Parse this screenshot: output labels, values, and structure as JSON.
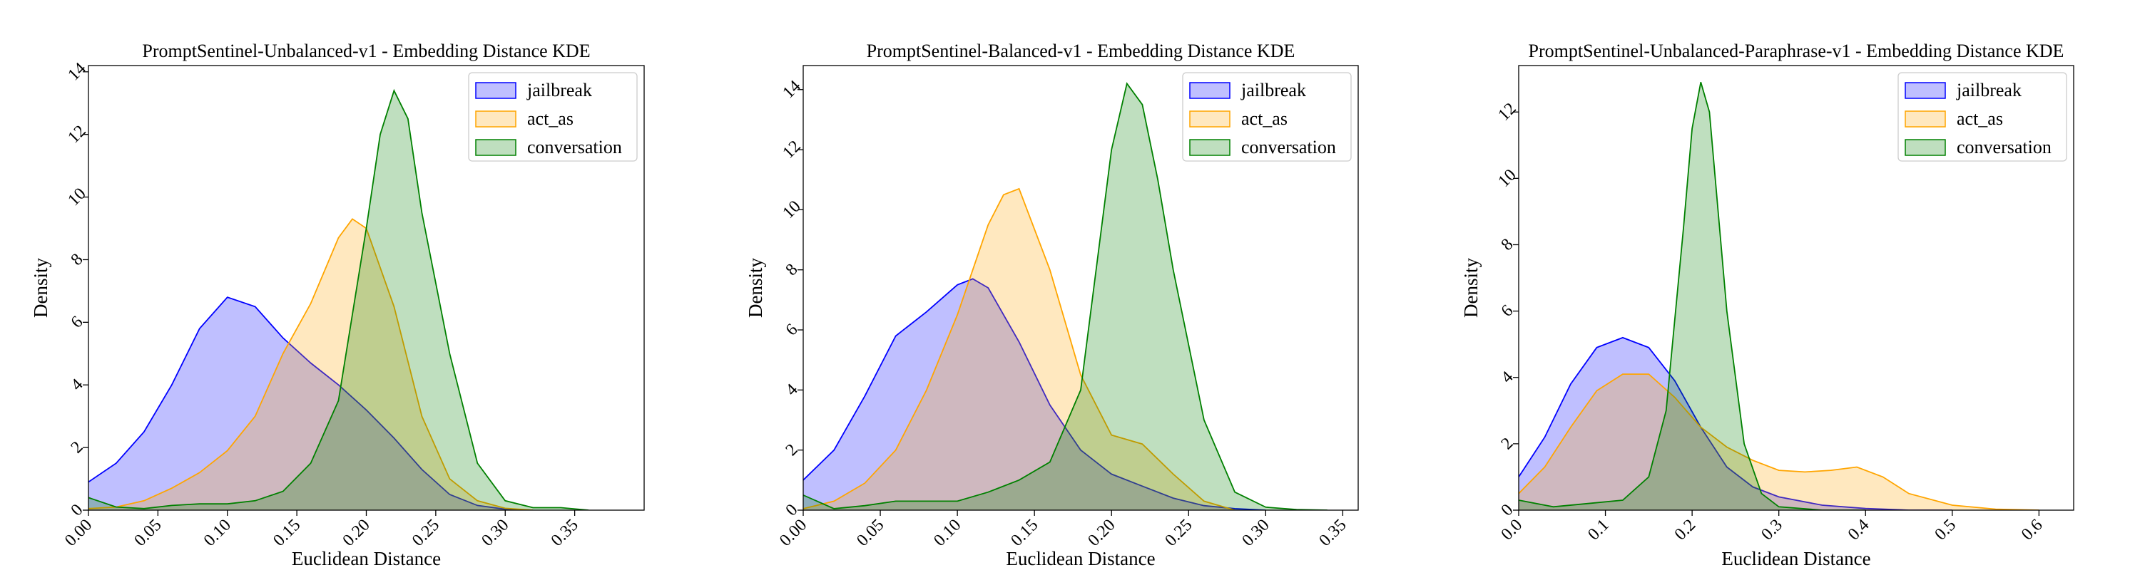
{
  "figure": {
    "background": "#ffffff"
  },
  "chart_data": [
    {
      "type": "area",
      "title": "PromptSentinel-Unbalanced-v1 - Embedding Distance KDE",
      "xlabel": "Euclidean Distance",
      "ylabel": "Density",
      "xlim": [
        0.0,
        0.4
      ],
      "ylim": [
        0,
        14.2
      ],
      "xticks": [
        0.0,
        0.05,
        0.1,
        0.15,
        0.2,
        0.25,
        0.3,
        0.35
      ],
      "xtick_labels": [
        "0.00",
        "0.05",
        "0.10",
        "0.15",
        "0.20",
        "0.25",
        "0.30",
        "0.35"
      ],
      "yticks": [
        0,
        2,
        4,
        6,
        8,
        10,
        12,
        14
      ],
      "ytick_labels": [
        "0",
        "2",
        "4",
        "6",
        "8",
        "10",
        "12",
        "14"
      ],
      "grid": false,
      "legend_position": "top-right",
      "series": [
        {
          "name": "jailbreak",
          "color": "#0000ff",
          "fill": "rgba(0,0,255,0.25)",
          "x": [
            0.0,
            0.02,
            0.04,
            0.06,
            0.08,
            0.1,
            0.12,
            0.14,
            0.16,
            0.18,
            0.2,
            0.22,
            0.24,
            0.26,
            0.28,
            0.3,
            0.32
          ],
          "y": [
            0.9,
            1.5,
            2.5,
            4.0,
            5.8,
            6.8,
            6.5,
            5.5,
            4.7,
            4.0,
            3.2,
            2.3,
            1.3,
            0.5,
            0.15,
            0.03,
            0.0
          ]
        },
        {
          "name": "act_as",
          "color": "#ffa500",
          "fill": "rgba(255,165,0,0.25)",
          "x": [
            0.0,
            0.02,
            0.04,
            0.06,
            0.08,
            0.1,
            0.12,
            0.14,
            0.16,
            0.18,
            0.19,
            0.2,
            0.22,
            0.24,
            0.26,
            0.28,
            0.3,
            0.32
          ],
          "y": [
            0.05,
            0.1,
            0.3,
            0.7,
            1.2,
            1.9,
            3.0,
            5.0,
            6.6,
            8.7,
            9.3,
            9.0,
            6.5,
            3.0,
            1.0,
            0.3,
            0.06,
            0.0
          ]
        },
        {
          "name": "conversation",
          "color": "#008000",
          "fill": "rgba(0,128,0,0.25)",
          "x": [
            0.0,
            0.02,
            0.04,
            0.06,
            0.08,
            0.1,
            0.12,
            0.14,
            0.16,
            0.18,
            0.2,
            0.21,
            0.22,
            0.23,
            0.24,
            0.26,
            0.28,
            0.3,
            0.32,
            0.34,
            0.36
          ],
          "y": [
            0.4,
            0.1,
            0.05,
            0.15,
            0.2,
            0.2,
            0.3,
            0.6,
            1.5,
            3.5,
            9.0,
            12.0,
            13.4,
            12.5,
            9.5,
            5.0,
            1.5,
            0.3,
            0.08,
            0.08,
            0.0
          ]
        }
      ]
    },
    {
      "type": "area",
      "title": "PromptSentinel-Balanced-v1 - Embedding Distance KDE",
      "xlabel": "Euclidean Distance",
      "ylabel": "Density",
      "xlim": [
        0.0,
        0.36
      ],
      "ylim": [
        0,
        14.8
      ],
      "xticks": [
        0.0,
        0.05,
        0.1,
        0.15,
        0.2,
        0.25,
        0.3,
        0.35
      ],
      "xtick_labels": [
        "0.00",
        "0.05",
        "0.10",
        "0.15",
        "0.20",
        "0.25",
        "0.30",
        "0.35"
      ],
      "yticks": [
        0,
        2,
        4,
        6,
        8,
        10,
        12,
        14
      ],
      "ytick_labels": [
        "0",
        "2",
        "4",
        "6",
        "8",
        "10",
        "12",
        "14"
      ],
      "grid": false,
      "legend_position": "top-right",
      "series": [
        {
          "name": "jailbreak",
          "color": "#0000ff",
          "fill": "rgba(0,0,255,0.25)",
          "x": [
            0.0,
            0.02,
            0.04,
            0.06,
            0.08,
            0.1,
            0.11,
            0.12,
            0.14,
            0.16,
            0.18,
            0.2,
            0.22,
            0.24,
            0.26,
            0.28,
            0.3
          ],
          "y": [
            1.0,
            2.0,
            3.8,
            5.8,
            6.6,
            7.5,
            7.7,
            7.4,
            5.6,
            3.5,
            2.0,
            1.2,
            0.8,
            0.4,
            0.15,
            0.05,
            0.0
          ]
        },
        {
          "name": "act_as",
          "color": "#ffa500",
          "fill": "rgba(255,165,0,0.25)",
          "x": [
            0.0,
            0.02,
            0.04,
            0.06,
            0.08,
            0.1,
            0.12,
            0.13,
            0.14,
            0.16,
            0.18,
            0.2,
            0.22,
            0.24,
            0.26,
            0.28
          ],
          "y": [
            0.05,
            0.3,
            0.9,
            2.0,
            4.0,
            6.5,
            9.5,
            10.5,
            10.7,
            8.0,
            4.5,
            2.5,
            2.2,
            1.2,
            0.3,
            0.0
          ]
        },
        {
          "name": "conversation",
          "color": "#008000",
          "fill": "rgba(0,128,0,0.25)",
          "x": [
            0.0,
            0.02,
            0.04,
            0.06,
            0.08,
            0.1,
            0.12,
            0.14,
            0.16,
            0.18,
            0.19,
            0.2,
            0.21,
            0.22,
            0.23,
            0.24,
            0.26,
            0.28,
            0.3,
            0.32,
            0.34
          ],
          "y": [
            0.5,
            0.05,
            0.15,
            0.3,
            0.3,
            0.3,
            0.6,
            1.0,
            1.6,
            4.0,
            8.0,
            12.0,
            14.2,
            13.5,
            11.0,
            8.0,
            3.0,
            0.6,
            0.1,
            0.02,
            0.0
          ]
        }
      ]
    },
    {
      "type": "area",
      "title": "PromptSentinel-Unbalanced-Paraphrase-v1 - Embedding Distance KDE",
      "xlabel": "Euclidean Distance",
      "ylabel": "Density",
      "xlim": [
        0.0,
        0.64
      ],
      "ylim": [
        0,
        13.4
      ],
      "xticks": [
        0.0,
        0.1,
        0.2,
        0.3,
        0.4,
        0.5,
        0.6
      ],
      "xtick_labels": [
        "0.0",
        "0.1",
        "0.2",
        "0.3",
        "0.4",
        "0.5",
        "0.6"
      ],
      "yticks": [
        0,
        2,
        4,
        6,
        8,
        10,
        12
      ],
      "ytick_labels": [
        "0",
        "2",
        "4",
        "6",
        "8",
        "10",
        "12"
      ],
      "grid": false,
      "legend_position": "top-right",
      "series": [
        {
          "name": "jailbreak",
          "color": "#0000ff",
          "fill": "rgba(0,0,255,0.25)",
          "x": [
            0.0,
            0.03,
            0.06,
            0.09,
            0.12,
            0.15,
            0.18,
            0.21,
            0.24,
            0.27,
            0.3,
            0.35,
            0.4,
            0.45,
            0.5
          ],
          "y": [
            1.0,
            2.2,
            3.8,
            4.9,
            5.2,
            4.9,
            3.9,
            2.5,
            1.3,
            0.7,
            0.4,
            0.15,
            0.05,
            0.0,
            0.0
          ]
        },
        {
          "name": "act_as",
          "color": "#ffa500",
          "fill": "rgba(255,165,0,0.25)",
          "x": [
            0.0,
            0.03,
            0.06,
            0.09,
            0.12,
            0.15,
            0.18,
            0.21,
            0.24,
            0.27,
            0.3,
            0.33,
            0.36,
            0.39,
            0.42,
            0.45,
            0.5,
            0.55,
            0.6
          ],
          "y": [
            0.5,
            1.3,
            2.5,
            3.6,
            4.1,
            4.1,
            3.4,
            2.5,
            1.9,
            1.5,
            1.2,
            1.15,
            1.2,
            1.3,
            1.0,
            0.5,
            0.15,
            0.03,
            0.0
          ]
        },
        {
          "name": "conversation",
          "color": "#008000",
          "fill": "rgba(0,128,0,0.25)",
          "x": [
            0.0,
            0.04,
            0.08,
            0.12,
            0.15,
            0.17,
            0.19,
            0.2,
            0.21,
            0.22,
            0.23,
            0.24,
            0.26,
            0.28,
            0.3,
            0.35,
            0.4
          ],
          "y": [
            0.3,
            0.1,
            0.2,
            0.3,
            1.0,
            3.0,
            8.5,
            11.5,
            12.9,
            12.0,
            9.0,
            6.0,
            2.0,
            0.5,
            0.1,
            0.0,
            0.0
          ]
        }
      ]
    }
  ]
}
